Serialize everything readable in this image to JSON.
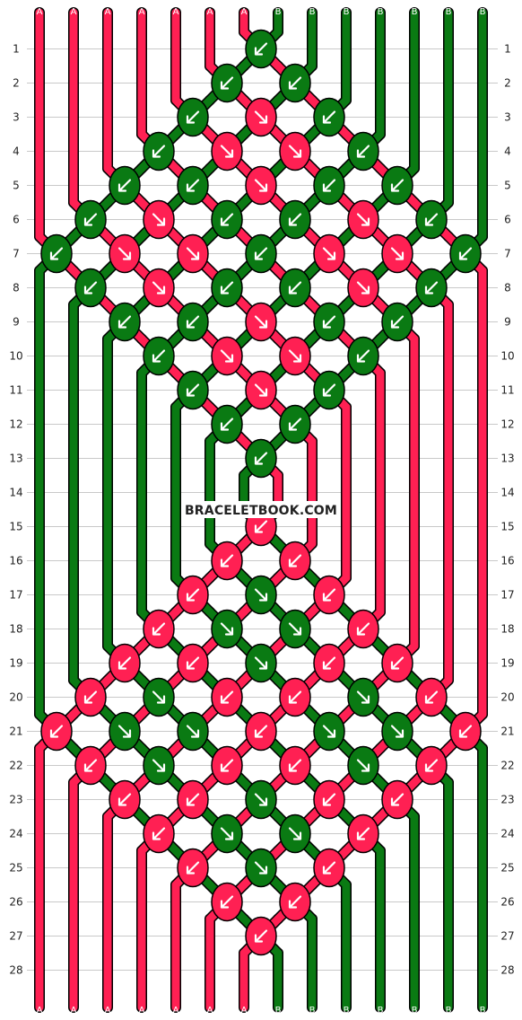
{
  "site": {
    "watermark": "BRACELETBOOK.COM"
  },
  "colors": {
    "A": "#ff2053",
    "B": "#0a7a13",
    "bg": "#ffffff",
    "grid": "#c9c9c9"
  },
  "strands": {
    "top": [
      "A",
      "A",
      "A",
      "A",
      "A",
      "A",
      "A",
      "B",
      "B",
      "B",
      "B",
      "B",
      "B",
      "B"
    ],
    "bottom": [
      "A",
      "A",
      "A",
      "A",
      "A",
      "A",
      "A",
      "B",
      "B",
      "B",
      "B",
      "B",
      "B",
      "B"
    ]
  },
  "rows": [
    "1",
    "2",
    "3",
    "4",
    "5",
    "6",
    "7",
    "8",
    "9",
    "10",
    "11",
    "12",
    "13",
    "14",
    "15",
    "16",
    "17",
    "18",
    "19",
    "20",
    "21",
    "22",
    "23",
    "24",
    "25",
    "26",
    "27",
    "28"
  ],
  "knots": [
    {
      "row": 1,
      "col": 7,
      "color": "B",
      "dir": "dl"
    },
    {
      "row": 2,
      "col": 6,
      "color": "B",
      "dir": "dl"
    },
    {
      "row": 2,
      "col": 8,
      "color": "B",
      "dir": "dl"
    },
    {
      "row": 3,
      "col": 5,
      "color": "B",
      "dir": "dl"
    },
    {
      "row": 3,
      "col": 7,
      "color": "A",
      "dir": "dr"
    },
    {
      "row": 3,
      "col": 9,
      "color": "B",
      "dir": "dl"
    },
    {
      "row": 4,
      "col": 4,
      "color": "B",
      "dir": "dl"
    },
    {
      "row": 4,
      "col": 6,
      "color": "A",
      "dir": "dr"
    },
    {
      "row": 4,
      "col": 8,
      "color": "A",
      "dir": "dr"
    },
    {
      "row": 4,
      "col": 10,
      "color": "B",
      "dir": "dl"
    },
    {
      "row": 5,
      "col": 3,
      "color": "B",
      "dir": "dl"
    },
    {
      "row": 5,
      "col": 5,
      "color": "B",
      "dir": "dl"
    },
    {
      "row": 5,
      "col": 7,
      "color": "A",
      "dir": "dr"
    },
    {
      "row": 5,
      "col": 9,
      "color": "B",
      "dir": "dl"
    },
    {
      "row": 5,
      "col": 11,
      "color": "B",
      "dir": "dl"
    },
    {
      "row": 6,
      "col": 2,
      "color": "B",
      "dir": "dl"
    },
    {
      "row": 6,
      "col": 4,
      "color": "A",
      "dir": "dr"
    },
    {
      "row": 6,
      "col": 6,
      "color": "B",
      "dir": "dl"
    },
    {
      "row": 6,
      "col": 8,
      "color": "B",
      "dir": "dl"
    },
    {
      "row": 6,
      "col": 10,
      "color": "A",
      "dir": "dr"
    },
    {
      "row": 6,
      "col": 12,
      "color": "B",
      "dir": "dl"
    },
    {
      "row": 7,
      "col": 1,
      "color": "B",
      "dir": "dl"
    },
    {
      "row": 7,
      "col": 3,
      "color": "A",
      "dir": "dr"
    },
    {
      "row": 7,
      "col": 5,
      "color": "A",
      "dir": "dr"
    },
    {
      "row": 7,
      "col": 7,
      "color": "B",
      "dir": "dl"
    },
    {
      "row": 7,
      "col": 9,
      "color": "A",
      "dir": "dr"
    },
    {
      "row": 7,
      "col": 11,
      "color": "A",
      "dir": "dr"
    },
    {
      "row": 7,
      "col": 13,
      "color": "B",
      "dir": "dl"
    },
    {
      "row": 8,
      "col": 2,
      "color": "B",
      "dir": "dl"
    },
    {
      "row": 8,
      "col": 4,
      "color": "A",
      "dir": "dr"
    },
    {
      "row": 8,
      "col": 6,
      "color": "B",
      "dir": "dl"
    },
    {
      "row": 8,
      "col": 8,
      "color": "B",
      "dir": "dl"
    },
    {
      "row": 8,
      "col": 10,
      "color": "A",
      "dir": "dr"
    },
    {
      "row": 8,
      "col": 12,
      "color": "B",
      "dir": "dl"
    },
    {
      "row": 9,
      "col": 3,
      "color": "B",
      "dir": "dl"
    },
    {
      "row": 9,
      "col": 5,
      "color": "B",
      "dir": "dl"
    },
    {
      "row": 9,
      "col": 7,
      "color": "A",
      "dir": "dr"
    },
    {
      "row": 9,
      "col": 9,
      "color": "B",
      "dir": "dl"
    },
    {
      "row": 9,
      "col": 11,
      "color": "B",
      "dir": "dl"
    },
    {
      "row": 10,
      "col": 4,
      "color": "B",
      "dir": "dl"
    },
    {
      "row": 10,
      "col": 6,
      "color": "A",
      "dir": "dr"
    },
    {
      "row": 10,
      "col": 8,
      "color": "A",
      "dir": "dr"
    },
    {
      "row": 10,
      "col": 10,
      "color": "B",
      "dir": "dl"
    },
    {
      "row": 11,
      "col": 5,
      "color": "B",
      "dir": "dl"
    },
    {
      "row": 11,
      "col": 7,
      "color": "A",
      "dir": "dr"
    },
    {
      "row": 11,
      "col": 9,
      "color": "B",
      "dir": "dl"
    },
    {
      "row": 12,
      "col": 6,
      "color": "B",
      "dir": "dl"
    },
    {
      "row": 12,
      "col": 8,
      "color": "B",
      "dir": "dl"
    },
    {
      "row": 13,
      "col": 7,
      "color": "B",
      "dir": "dl"
    },
    {
      "row": 15,
      "col": 7,
      "color": "A",
      "dir": "dl"
    },
    {
      "row": 16,
      "col": 6,
      "color": "A",
      "dir": "dl"
    },
    {
      "row": 16,
      "col": 8,
      "color": "A",
      "dir": "dl"
    },
    {
      "row": 17,
      "col": 5,
      "color": "A",
      "dir": "dl"
    },
    {
      "row": 17,
      "col": 7,
      "color": "B",
      "dir": "dr"
    },
    {
      "row": 17,
      "col": 9,
      "color": "A",
      "dir": "dl"
    },
    {
      "row": 18,
      "col": 4,
      "color": "A",
      "dir": "dl"
    },
    {
      "row": 18,
      "col": 6,
      "color": "B",
      "dir": "dr"
    },
    {
      "row": 18,
      "col": 8,
      "color": "B",
      "dir": "dr"
    },
    {
      "row": 18,
      "col": 10,
      "color": "A",
      "dir": "dl"
    },
    {
      "row": 19,
      "col": 3,
      "color": "A",
      "dir": "dl"
    },
    {
      "row": 19,
      "col": 5,
      "color": "A",
      "dir": "dl"
    },
    {
      "row": 19,
      "col": 7,
      "color": "B",
      "dir": "dr"
    },
    {
      "row": 19,
      "col": 9,
      "color": "A",
      "dir": "dl"
    },
    {
      "row": 19,
      "col": 11,
      "color": "A",
      "dir": "dl"
    },
    {
      "row": 20,
      "col": 2,
      "color": "A",
      "dir": "dl"
    },
    {
      "row": 20,
      "col": 4,
      "color": "B",
      "dir": "dr"
    },
    {
      "row": 20,
      "col": 6,
      "color": "A",
      "dir": "dl"
    },
    {
      "row": 20,
      "col": 8,
      "color": "A",
      "dir": "dl"
    },
    {
      "row": 20,
      "col": 10,
      "color": "B",
      "dir": "dr"
    },
    {
      "row": 20,
      "col": 12,
      "color": "A",
      "dir": "dl"
    },
    {
      "row": 21,
      "col": 1,
      "color": "A",
      "dir": "dl"
    },
    {
      "row": 21,
      "col": 3,
      "color": "B",
      "dir": "dr"
    },
    {
      "row": 21,
      "col": 5,
      "color": "B",
      "dir": "dr"
    },
    {
      "row": 21,
      "col": 7,
      "color": "A",
      "dir": "dl"
    },
    {
      "row": 21,
      "col": 9,
      "color": "B",
      "dir": "dr"
    },
    {
      "row": 21,
      "col": 11,
      "color": "B",
      "dir": "dr"
    },
    {
      "row": 21,
      "col": 13,
      "color": "A",
      "dir": "dl"
    },
    {
      "row": 22,
      "col": 2,
      "color": "A",
      "dir": "dl"
    },
    {
      "row": 22,
      "col": 4,
      "color": "B",
      "dir": "dr"
    },
    {
      "row": 22,
      "col": 6,
      "color": "A",
      "dir": "dl"
    },
    {
      "row": 22,
      "col": 8,
      "color": "A",
      "dir": "dl"
    },
    {
      "row": 22,
      "col": 10,
      "color": "B",
      "dir": "dr"
    },
    {
      "row": 22,
      "col": 12,
      "color": "A",
      "dir": "dl"
    },
    {
      "row": 23,
      "col": 3,
      "color": "A",
      "dir": "dl"
    },
    {
      "row": 23,
      "col": 5,
      "color": "A",
      "dir": "dl"
    },
    {
      "row": 23,
      "col": 7,
      "color": "B",
      "dir": "dr"
    },
    {
      "row": 23,
      "col": 9,
      "color": "A",
      "dir": "dl"
    },
    {
      "row": 23,
      "col": 11,
      "color": "A",
      "dir": "dl"
    },
    {
      "row": 24,
      "col": 4,
      "color": "A",
      "dir": "dl"
    },
    {
      "row": 24,
      "col": 6,
      "color": "B",
      "dir": "dr"
    },
    {
      "row": 24,
      "col": 8,
      "color": "B",
      "dir": "dr"
    },
    {
      "row": 24,
      "col": 10,
      "color": "A",
      "dir": "dl"
    },
    {
      "row": 25,
      "col": 5,
      "color": "A",
      "dir": "dl"
    },
    {
      "row": 25,
      "col": 7,
      "color": "B",
      "dir": "dr"
    },
    {
      "row": 25,
      "col": 9,
      "color": "A",
      "dir": "dl"
    },
    {
      "row": 26,
      "col": 6,
      "color": "A",
      "dir": "dl"
    },
    {
      "row": 26,
      "col": 8,
      "color": "A",
      "dir": "dl"
    },
    {
      "row": 27,
      "col": 7,
      "color": "A",
      "dir": "dl"
    }
  ]
}
